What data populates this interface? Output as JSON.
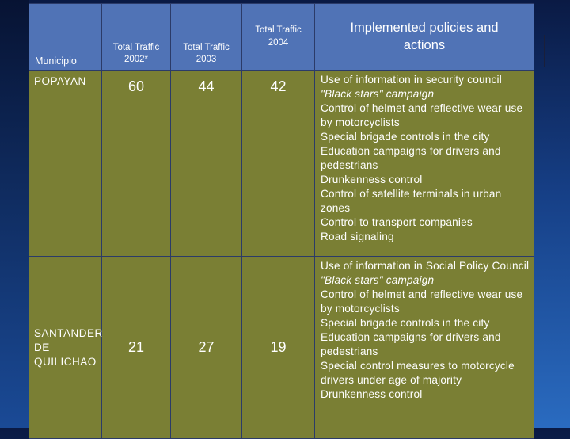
{
  "table": {
    "headers": {
      "municipio": "Municipio",
      "traffic_2002": [
        "Total Traffic",
        "2002*"
      ],
      "traffic_2003": [
        "Total Traffic",
        "2003"
      ],
      "traffic_2004": [
        "Total Traffic",
        "2004"
      ],
      "policies": [
        "Implemented policies and",
        "actions"
      ]
    },
    "rows": [
      {
        "municipio": "POPAYAN",
        "t2002": "60",
        "t2003": "44",
        "t2004": "42",
        "actions": [
          "Use of information in security council",
          "\"Black stars\" campaign",
          "Control of helmet and reflective wear use by motorcyclists",
          "Special brigade controls in the city",
          "Education campaigns for drivers and pedestrians",
          "Drunkenness control",
          "Control of satellite terminals in urban zones",
          "Control to transport companies",
          "Road signaling"
        ]
      },
      {
        "municipio": "SANTANDER DE QUILICHAO",
        "t2002": "21",
        "t2003": "27",
        "t2004": "19",
        "actions": [
          "Use of information in Social Policy Council",
          "\"Black stars\" campaign",
          "Control of helmet and reflective wear use by motorcyclists",
          "Special brigade controls in the city",
          "Education campaigns for drivers and pedestrians",
          "Special control measures to motorcycle drivers under age of majority",
          "Drunkenness control"
        ]
      }
    ]
  }
}
